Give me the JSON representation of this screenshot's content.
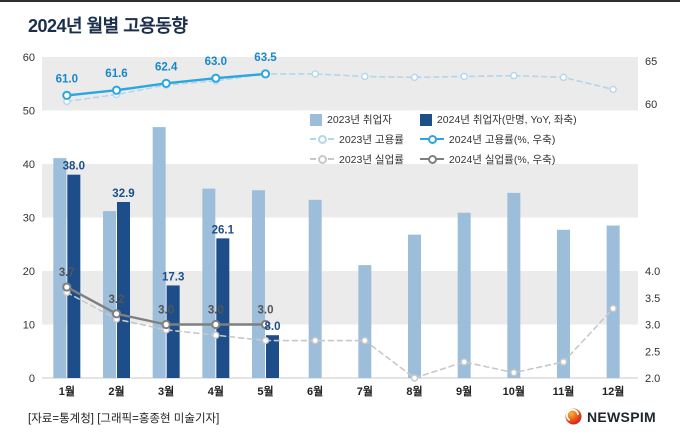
{
  "title": "2024년 월별 고용동향",
  "footer": {
    "credit": "[자료=통계청] [그래픽=홍종현 미술기자]",
    "logo_text": "NEWSPIM"
  },
  "colors": {
    "bar_2023": "#9dbeda",
    "bar_2024": "#1d4e89",
    "emp_rate_2023": "#b5d6ea",
    "emp_rate_2024": "#2ba7e0",
    "unemp_2023": "#c8c8c8",
    "unemp_2024": "#7f7f7f",
    "band_gray": "#ebebeb",
    "label_emp": "#1787cb",
    "label_bar": "#1d4e89",
    "label_unemp": "#555555",
    "title_text": "#1b2e4b",
    "logo_orange": "#f5a31a",
    "logo_red": "#d81f26"
  },
  "chart_data": {
    "type": "bar+line combo",
    "title": "2024년 월별 고용동향",
    "categories": [
      "1월",
      "2월",
      "3월",
      "4월",
      "5월",
      "6월",
      "7월",
      "8월",
      "9월",
      "10월",
      "11월",
      "12월"
    ],
    "series": [
      {
        "name": "2023년 취업자",
        "type": "bar",
        "axis": "left",
        "values": [
          41.1,
          31.2,
          46.9,
          35.4,
          35.1,
          33.3,
          21.1,
          26.8,
          30.9,
          34.6,
          27.7,
          28.5
        ]
      },
      {
        "name": "2024년 취업자(만명, YoY, 좌축)",
        "type": "bar",
        "axis": "left",
        "values": [
          38.0,
          32.9,
          17.3,
          26.1,
          8.0
        ],
        "labels": [
          "38.0",
          "32.9",
          "17.3",
          "26.1",
          "8.0"
        ]
      },
      {
        "name": "2023년 고용률",
        "type": "line",
        "style": "dashed",
        "axis": "right_employment_rate",
        "values": [
          60.3,
          61.1,
          62.2,
          62.7,
          63.5,
          63.5,
          63.2,
          63.1,
          63.2,
          63.3,
          63.1,
          61.7
        ]
      },
      {
        "name": "2024년 고용률(%, 우축)",
        "type": "line",
        "style": "solid",
        "axis": "right_employment_rate",
        "values": [
          61.0,
          61.6,
          62.4,
          63.0,
          63.5
        ],
        "labels": [
          "61.0",
          "61.6",
          "62.4",
          "63.0",
          "63.5"
        ]
      },
      {
        "name": "2023년 실업률",
        "type": "line",
        "style": "dashed",
        "axis": "right_unemployment_rate",
        "values": [
          3.6,
          3.1,
          2.9,
          2.8,
          2.7,
          2.7,
          2.7,
          2.0,
          2.3,
          2.1,
          2.3,
          3.3
        ]
      },
      {
        "name": "2024년 실업률(%, 우축)",
        "type": "line",
        "style": "solid",
        "axis": "right_unemployment_rate",
        "values": [
          3.7,
          3.2,
          3.0,
          3.0,
          3.0
        ],
        "labels": [
          "3.7",
          "3.2",
          "3.0",
          "3.0",
          "3.0"
        ]
      }
    ],
    "axes": {
      "left": {
        "ticks": [
          "0",
          "10",
          "20",
          "30",
          "40",
          "50",
          "60"
        ],
        "range": [
          0,
          60
        ]
      },
      "right_employment_rate": {
        "ticks": [
          "60",
          "65"
        ],
        "range": [
          60,
          65
        ]
      },
      "right_unemployment_rate": {
        "ticks": [
          "2.0",
          "2.5",
          "3.0",
          "3.5",
          "4.0"
        ],
        "range": [
          2.0,
          4.0
        ]
      }
    },
    "legend_position": "inside-top-right",
    "grid": "alternating horizontal bands"
  }
}
